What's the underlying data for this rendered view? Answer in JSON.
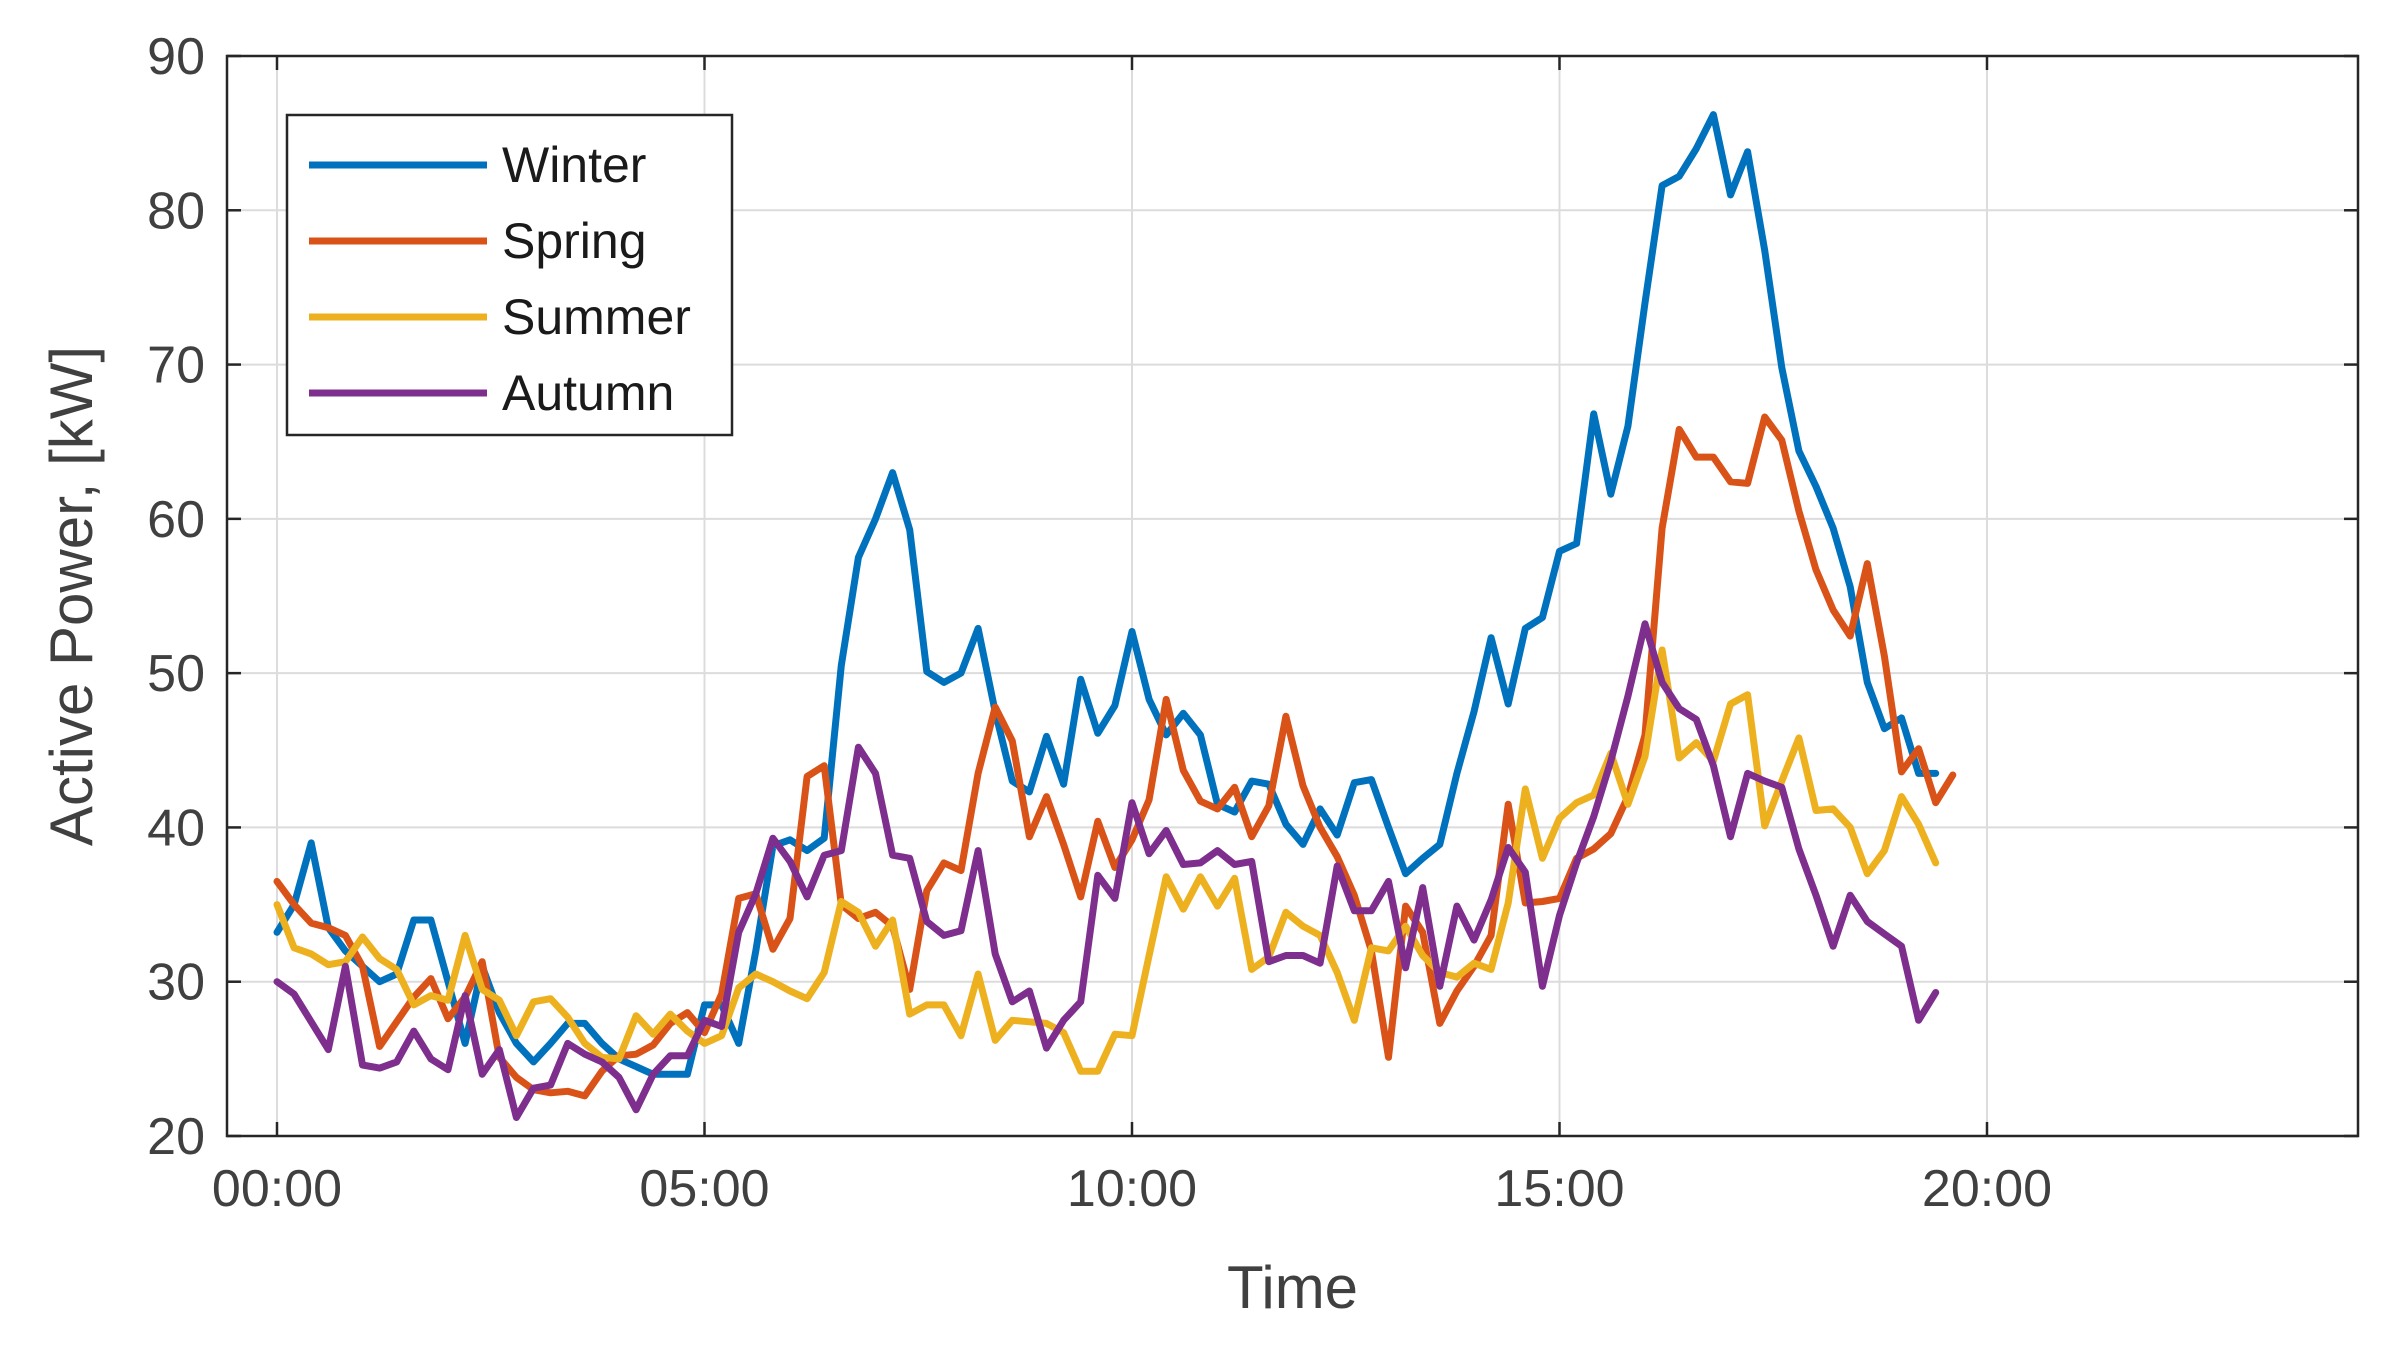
{
  "chart_data": {
    "type": "line",
    "xlabel": "Time",
    "ylabel": "Active Power, [kW]",
    "xlim": [
      0,
      24
    ],
    "ylim": [
      20,
      90
    ],
    "grid": true,
    "legend_position": "top-left",
    "x_ticks": [
      {
        "value": 0,
        "label": "00:00"
      },
      {
        "value": 5,
        "label": "05:00"
      },
      {
        "value": 10,
        "label": "10:00"
      },
      {
        "value": 15,
        "label": "15:00"
      },
      {
        "value": 20,
        "label": "20:00"
      }
    ],
    "y_ticks": [
      {
        "value": 20,
        "label": "20"
      },
      {
        "value": 30,
        "label": "30"
      },
      {
        "value": 40,
        "label": "40"
      },
      {
        "value": 50,
        "label": "50"
      },
      {
        "value": 60,
        "label": "60"
      },
      {
        "value": 70,
        "label": "70"
      },
      {
        "value": 80,
        "label": "80"
      },
      {
        "value": 90,
        "label": "90"
      }
    ],
    "x_step_hours": 0.2,
    "series": [
      {
        "name": "Winter",
        "color": "#0072BD",
        "values": [
          33.2,
          35.0,
          39.0,
          33.5,
          32.0,
          31.0,
          30.0,
          30.5,
          34.0,
          34.0,
          30.0,
          26.0,
          31.0,
          28.0,
          26.0,
          24.8,
          26.0,
          27.3,
          27.3,
          26.0,
          25.0,
          24.5,
          24.0,
          24.0,
          24.0,
          28.5,
          28.5,
          26.0,
          32.0,
          38.8,
          39.2,
          38.5,
          39.3,
          50.5,
          57.5,
          60.0,
          63.0,
          59.3,
          50.1,
          49.4,
          50.0,
          52.9,
          47.5,
          43.0,
          42.3,
          45.9,
          42.8,
          49.6,
          46.1,
          47.9,
          52.7,
          48.3,
          46.0,
          47.4,
          46.0,
          41.5,
          41.0,
          43.0,
          42.8,
          40.2,
          38.9,
          41.2,
          39.5,
          42.9,
          43.1,
          40.0,
          37.0,
          38.0,
          38.9,
          43.5,
          47.5,
          52.3,
          48.0,
          52.9,
          53.6,
          57.9,
          58.4,
          66.8,
          61.6,
          66.0,
          74.0,
          81.6,
          82.2,
          84.0,
          86.2,
          81.0,
          83.8,
          77.4,
          69.8,
          64.4,
          62.1,
          59.4,
          55.6,
          49.4,
          46.4,
          47.1,
          43.5,
          43.5
        ]
      },
      {
        "name": "Spring",
        "color": "#D95319",
        "values": [
          36.5,
          35.0,
          33.8,
          33.5,
          33.0,
          31.0,
          25.8,
          27.4,
          29.0,
          30.2,
          27.6,
          29.0,
          31.3,
          25.1,
          23.8,
          23.0,
          22.8,
          22.9,
          22.6,
          24.2,
          25.2,
          25.3,
          25.9,
          27.3,
          28.0,
          26.7,
          29.2,
          35.4,
          35.7,
          32.1,
          34.1,
          43.3,
          44.0,
          35.0,
          34.1,
          34.5,
          33.6,
          29.5,
          35.9,
          37.7,
          37.2,
          43.5,
          47.8,
          45.6,
          39.4,
          42.0,
          38.9,
          35.5,
          40.4,
          37.4,
          39.2,
          41.8,
          48.3,
          43.7,
          41.7,
          41.2,
          42.6,
          39.4,
          41.4,
          47.2,
          42.7,
          40.0,
          38.1,
          35.6,
          32.0,
          25.1,
          34.9,
          33.2,
          27.3,
          29.4,
          31.0,
          33.0,
          41.5,
          35.1,
          35.2,
          35.4,
          38.0,
          38.6,
          39.6,
          42.0,
          46.0,
          59.4,
          65.8,
          64.0,
          64.0,
          62.4,
          62.3,
          66.6,
          65.1,
          60.5,
          56.7,
          54.1,
          52.4,
          57.1,
          51.1,
          43.6,
          45.1,
          41.6,
          43.4
        ]
      },
      {
        "name": "Summer",
        "color": "#EDB120",
        "values": [
          35.0,
          32.2,
          31.8,
          31.1,
          31.3,
          32.9,
          31.5,
          30.8,
          28.5,
          29.1,
          28.8,
          33.0,
          29.5,
          28.8,
          26.5,
          28.7,
          28.9,
          27.7,
          26.0,
          25.1,
          25.0,
          27.8,
          26.6,
          27.9,
          26.8,
          26.0,
          26.5,
          29.6,
          30.5,
          30.0,
          29.4,
          28.9,
          30.6,
          35.2,
          34.5,
          32.3,
          34.0,
          27.9,
          28.5,
          28.5,
          26.5,
          30.5,
          26.2,
          27.5,
          27.4,
          27.3,
          26.7,
          24.2,
          24.2,
          26.6,
          26.5,
          31.7,
          36.8,
          34.7,
          36.8,
          34.9,
          36.7,
          30.8,
          31.6,
          34.5,
          33.6,
          33.0,
          30.6,
          27.5,
          32.2,
          32.0,
          33.6,
          31.7,
          30.6,
          30.3,
          31.2,
          30.8,
          35.1,
          42.5,
          38.0,
          40.6,
          41.6,
          42.1,
          44.8,
          41.5,
          44.6,
          51.5,
          44.5,
          45.5,
          44.3,
          48.0,
          48.6,
          40.1,
          43.0,
          45.8,
          41.1,
          41.2,
          40.0,
          37.0,
          38.5,
          42.0,
          40.2,
          37.7
        ]
      },
      {
        "name": "Autumn",
        "color": "#7E2F8E",
        "values": [
          30.0,
          29.2,
          27.4,
          25.6,
          31.0,
          24.6,
          24.4,
          24.8,
          26.8,
          25.0,
          24.3,
          29.1,
          24.0,
          25.6,
          21.2,
          23.1,
          23.3,
          26.0,
          25.3,
          24.8,
          23.8,
          21.7,
          24.0,
          25.2,
          25.2,
          27.5,
          27.1,
          33.2,
          35.7,
          39.3,
          37.8,
          35.5,
          38.2,
          38.5,
          45.2,
          43.5,
          38.2,
          38.0,
          33.9,
          33.0,
          33.3,
          38.5,
          31.8,
          28.7,
          29.4,
          25.7,
          27.5,
          28.7,
          36.9,
          35.4,
          41.6,
          38.3,
          39.8,
          37.6,
          37.7,
          38.5,
          37.6,
          37.8,
          31.3,
          31.7,
          31.7,
          31.2,
          37.5,
          34.6,
          34.6,
          36.5,
          30.9,
          36.1,
          29.7,
          34.9,
          32.7,
          35.3,
          38.7,
          37.1,
          29.7,
          34.3,
          37.7,
          40.7,
          44.3,
          48.5,
          53.2,
          49.4,
          47.7,
          47.0,
          44.0,
          39.4,
          43.5,
          43.0,
          42.6,
          38.6,
          35.6,
          32.3,
          35.6,
          33.9,
          33.1,
          32.3,
          27.5,
          29.3
        ]
      }
    ]
  }
}
